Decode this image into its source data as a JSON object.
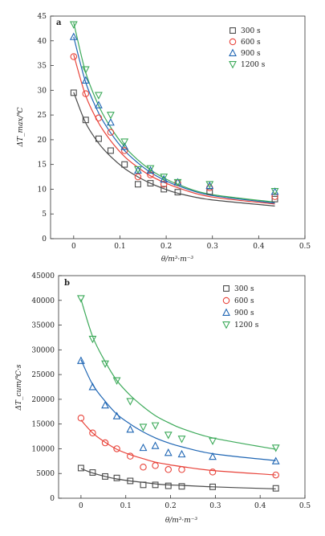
{
  "series_colors": [
    "#4a4a4a",
    "#e8433a",
    "#1f66b4",
    "#3daa5a"
  ],
  "chart_data": [
    {
      "type": "scatter",
      "panel_label": "a",
      "xlabel": "θ/m³·m⁻³",
      "ylabel": "ΔT_max/℃",
      "xlim": [
        -0.05,
        0.5
      ],
      "ylim": [
        0,
        45
      ],
      "xticks": [
        "0",
        "0.1",
        "0.2",
        "0.3",
        "0.4",
        "0.5"
      ],
      "yticks": [
        "0",
        "5",
        "10",
        "15",
        "20",
        "25",
        "30",
        "35",
        "40",
        "45"
      ],
      "legend_position": "top-right",
      "grid": false,
      "x": [
        0,
        0.026,
        0.054,
        0.08,
        0.11,
        0.139,
        0.166,
        0.195,
        0.225,
        0.294,
        0.435
      ],
      "series": [
        {
          "name": "300 s",
          "marker": "square",
          "values": [
            29.5,
            24.0,
            20.2,
            17.8,
            15.0,
            11.0,
            11.2,
            10.0,
            9.4,
            9.5,
            8.0
          ],
          "fit": [
            29.6,
            23.4,
            19.3,
            16.6,
            14.2,
            12.5,
            11.2,
            10.1,
            9.2,
            7.9,
            6.6
          ]
        },
        {
          "name": "600 s",
          "marker": "circle",
          "values": [
            36.8,
            29.3,
            24.4,
            21.5,
            17.8,
            12.5,
            12.9,
            11.0,
            11.3,
            10.3,
            8.5
          ],
          "fit": [
            37.2,
            28.9,
            23.4,
            19.8,
            16.6,
            14.4,
            12.7,
            11.4,
            10.3,
            8.5,
            7.0
          ]
        },
        {
          "name": "900 s",
          "marker": "triangle-up",
          "values": [
            40.8,
            32.0,
            27.0,
            23.5,
            18.6,
            13.8,
            13.8,
            12.0,
            11.4,
            10.7,
            9.5
          ],
          "fit": [
            40.8,
            31.6,
            25.4,
            21.4,
            17.8,
            15.3,
            13.4,
            11.9,
            10.7,
            8.8,
            7.2
          ]
        },
        {
          "name": "1200 s",
          "marker": "triangle-down",
          "values": [
            43.3,
            34.2,
            29.0,
            25.0,
            19.6,
            14.0,
            14.2,
            12.5,
            11.4,
            11.0,
            9.6
          ],
          "fit": [
            43.7,
            33.6,
            26.9,
            22.5,
            18.6,
            15.9,
            13.9,
            12.3,
            11.0,
            9.0,
            7.4
          ]
        }
      ]
    },
    {
      "type": "scatter",
      "panel_label": "b",
      "xlabel": "θ/m³·m⁻³",
      "ylabel": "ΔT_cum/℃·s",
      "xlim": [
        -0.05,
        0.5
      ],
      "ylim": [
        0,
        45000
      ],
      "xticks": [
        "0",
        "0.1",
        "0.2",
        "0.3",
        "0.4",
        "0.5"
      ],
      "yticks": [
        "0",
        "5000",
        "10000",
        "15000",
        "20000",
        "25000",
        "30000",
        "35000",
        "40000",
        "45000"
      ],
      "legend_position": "top-right",
      "grid": false,
      "x": [
        0,
        0.026,
        0.054,
        0.08,
        0.11,
        0.139,
        0.166,
        0.195,
        0.225,
        0.294,
        0.435
      ],
      "series": [
        {
          "name": "300 s",
          "marker": "square",
          "values": [
            6100,
            5200,
            4400,
            4100,
            3500,
            2700,
            2700,
            2500,
            2400,
            2300,
            2000
          ],
          "fit": [
            6000,
            5100,
            4400,
            3900,
            3500,
            3200,
            2900,
            2700,
            2600,
            2300,
            1900
          ]
        },
        {
          "name": "600 s",
          "marker": "circle",
          "values": [
            16200,
            13200,
            11200,
            10000,
            8500,
            6300,
            6600,
            5800,
            5800,
            5300,
            4700
          ],
          "fit": [
            15800,
            13200,
            11300,
            9900,
            8800,
            8000,
            7300,
            6800,
            6400,
            5600,
            4700
          ]
        },
        {
          "name": "900 s",
          "marker": "triangle-up",
          "values": [
            27800,
            22500,
            18800,
            16600,
            13900,
            10200,
            10600,
            9200,
            8900,
            8400,
            7500
          ],
          "fit": [
            28000,
            23000,
            19600,
            17000,
            15000,
            13400,
            12200,
            11200,
            10400,
            9000,
            7600
          ]
        },
        {
          "name": "1200 s",
          "marker": "triangle-down",
          "values": [
            40400,
            32200,
            27200,
            23800,
            19600,
            14400,
            14700,
            12800,
            12000,
            11600,
            10200
          ],
          "fit": [
            40200,
            32700,
            27600,
            23800,
            20800,
            18500,
            16700,
            15300,
            14100,
            12200,
            9900
          ]
        }
      ]
    }
  ]
}
